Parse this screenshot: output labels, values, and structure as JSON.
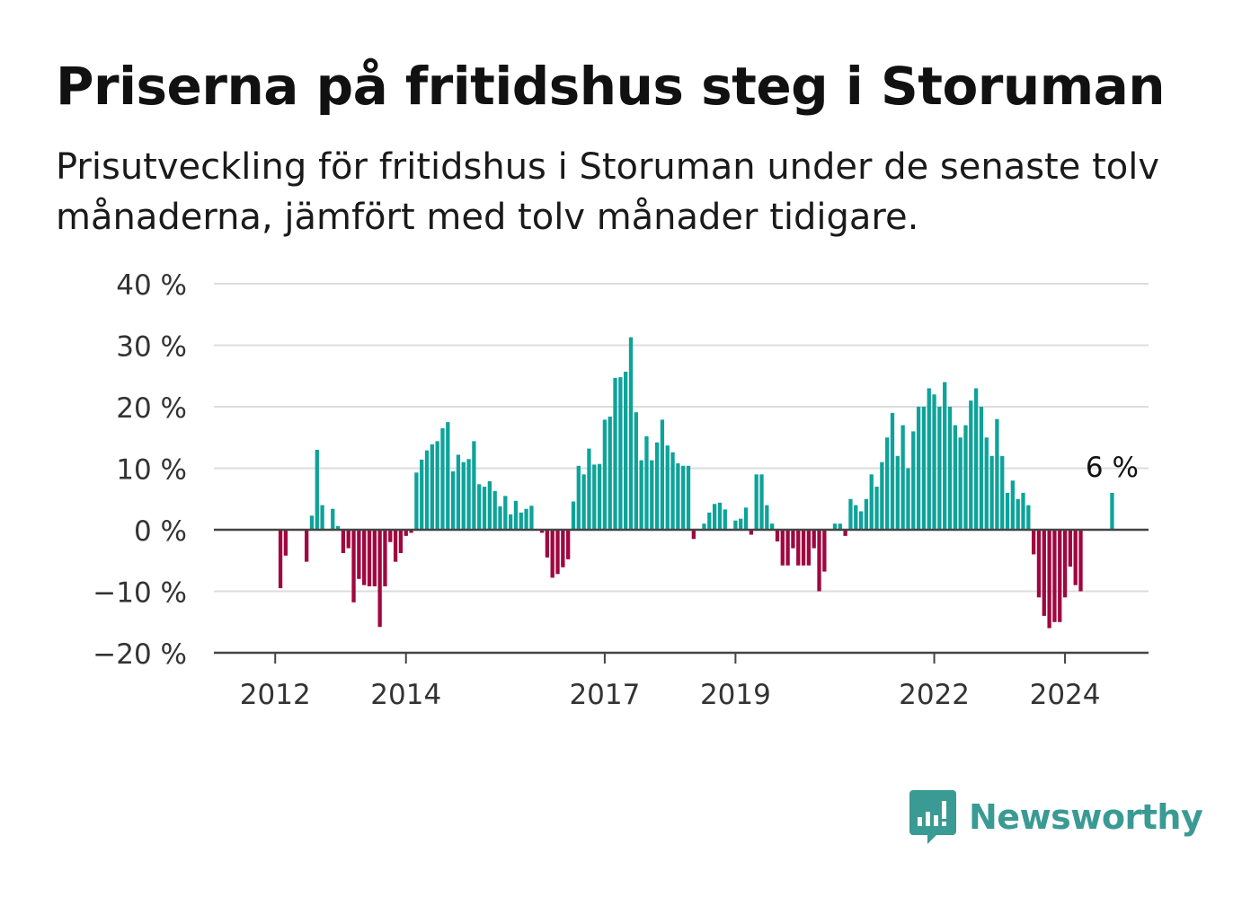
{
  "title": "Priserna på fritidshus steg i Storuman",
  "subtitle": "Prisutveckling för fritidshus i Storuman under de senaste tolv månaderna, jämfört med tolv månader tidigare.",
  "brand": {
    "name": "Newsworthy",
    "color": "#3a9a94",
    "icon": "bar-chart-speech-bubble-icon"
  },
  "colors": {
    "positive": "#0ea39a",
    "negative": "#a0063f",
    "grid": "#dddddd",
    "axis": "#444444"
  },
  "chart_data": {
    "type": "bar",
    "ylim": [
      -20,
      40
    ],
    "yticks": [
      -20,
      -10,
      0,
      10,
      20,
      30,
      40
    ],
    "ytick_labels": [
      "−20 %",
      "−10 %",
      "0 %",
      "10 %",
      "20 %",
      "30 %",
      "40 %"
    ],
    "xticks": [
      {
        "label": "2012",
        "index": 7
      },
      {
        "label": "2014",
        "index": 32
      },
      {
        "label": "2017",
        "index": 70
      },
      {
        "label": "2019",
        "index": 95
      },
      {
        "label": "2022",
        "index": 133
      },
      {
        "label": "2024",
        "index": 158
      }
    ],
    "annotation": {
      "text": "6 %",
      "index": 167
    },
    "values": [
      0,
      0,
      0,
      0,
      0,
      0,
      0,
      0,
      -9.5,
      -4.2,
      0,
      0,
      0,
      -5.2,
      2.3,
      13,
      4,
      0,
      3.4,
      0.6,
      -3.8,
      -3,
      -11.8,
      -8,
      -9,
      -9.2,
      -9.2,
      -15.8,
      -9.2,
      -2,
      -5.2,
      -3.8,
      -1,
      -0.5,
      9.3,
      11.4,
      12.9,
      13.9,
      14.4,
      16.5,
      17.5,
      9.5,
      12.2,
      11,
      11.5,
      14.4,
      7.4,
      7,
      7.9,
      6.3,
      3.8,
      5.5,
      2.5,
      4.7,
      2.8,
      3.4,
      3.9,
      0,
      -0.5,
      -4.5,
      -7.8,
      -7.2,
      -6.1,
      -4.8,
      4.6,
      10.4,
      9,
      13.2,
      10.6,
      10.7,
      17.9,
      18.4,
      24.7,
      24.8,
      25.7,
      31.3,
      19.1,
      11.3,
      15.2,
      11.3,
      14.2,
      17.9,
      13.7,
      12.6,
      10.8,
      10.4,
      10.4,
      -1.5,
      0,
      1,
      2.8,
      4.2,
      4.4,
      3.3,
      0,
      1.5,
      1.8,
      3.6,
      -0.8,
      9,
      9,
      4,
      1,
      -1.9,
      -5.8,
      -5.8,
      -3,
      -5.8,
      -5.8,
      -5.8,
      -3,
      -10,
      -6.8,
      0,
      1,
      1,
      -1,
      5,
      4,
      3,
      5,
      9,
      7,
      11,
      15,
      19,
      12,
      17,
      10,
      16,
      20,
      20,
      23,
      22,
      20,
      24,
      20,
      17,
      15,
      17,
      21,
      23,
      20,
      15,
      12,
      18,
      12,
      6,
      8,
      5,
      6,
      4,
      -4,
      -11,
      -14,
      -16,
      -15,
      -15,
      -11,
      -6,
      -9,
      -10,
      0,
      0,
      0,
      0,
      0,
      6
    ]
  }
}
